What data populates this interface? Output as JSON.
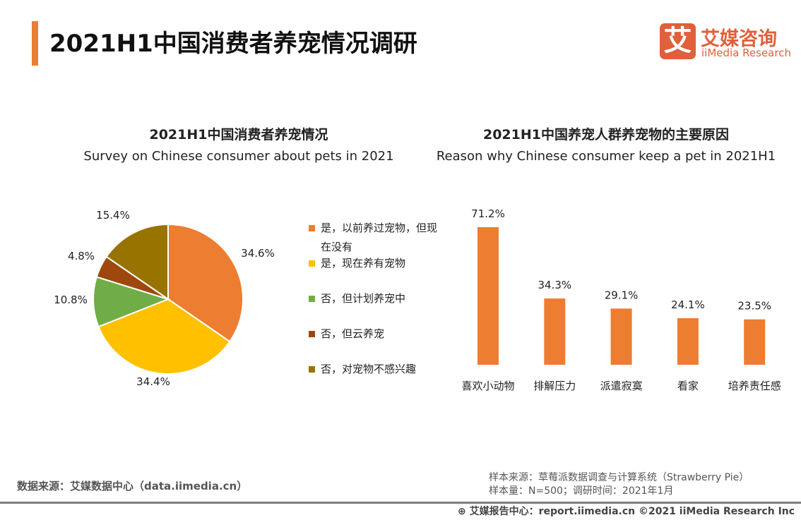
{
  "header": {
    "title": "2021H1中国消费者养宠情况调研",
    "logo_mark": "艾",
    "logo_cn": "艾媒咨询",
    "logo_en": "iiMedia Research"
  },
  "chart_data": [
    {
      "type": "pie",
      "title": "2021H1中国消费者养宠情况",
      "subtitle": "Survey on Chinese consumer about pets in 2021",
      "slices": [
        {
          "name": "是，以前养过宠物，但现在没有",
          "value": 34.6,
          "label": "34.6%",
          "color": "#ed7d31"
        },
        {
          "name": "是，现在养有宠物",
          "value": 34.4,
          "label": "34.4%",
          "color": "#ffc000"
        },
        {
          "name": "否，但计划养宠中",
          "value": 10.8,
          "label": "10.8%",
          "color": "#70ad47"
        },
        {
          "name": "否，但云养宠",
          "value": 4.8,
          "label": "4.8%",
          "color": "#9e480e"
        },
        {
          "name": "否，对宠物不感兴趣",
          "value": 15.4,
          "label": "15.4%",
          "color": "#997300"
        }
      ],
      "legend": "right"
    },
    {
      "type": "bar",
      "title": "2021H1中国养宠人群养宠物的主要原因",
      "subtitle": "Reason why Chinese consumer keep a pet in 2021H1",
      "categories": [
        "喜欢小动物",
        "排解压力",
        "派遣寂寞",
        "看家",
        "培养责任感"
      ],
      "values": [
        71.2,
        34.3,
        29.1,
        24.1,
        23.5
      ],
      "labels": [
        "71.2%",
        "34.3%",
        "29.1%",
        "24.1%",
        "23.5%"
      ],
      "color": "#ed7d31",
      "grid": false
    }
  ],
  "footer": {
    "source": "数据来源：艾媒数据中心（data.iimedia.cn）",
    "sample_source": "样本来源：草莓派数据调查与计算系统（Strawberry Pie）",
    "sample_size": "样本量：N=500；调研时间：2021年1月",
    "report": "艾媒报告中心：report.iimedia.cn  ©2021  iiMedia Research  Inc"
  }
}
